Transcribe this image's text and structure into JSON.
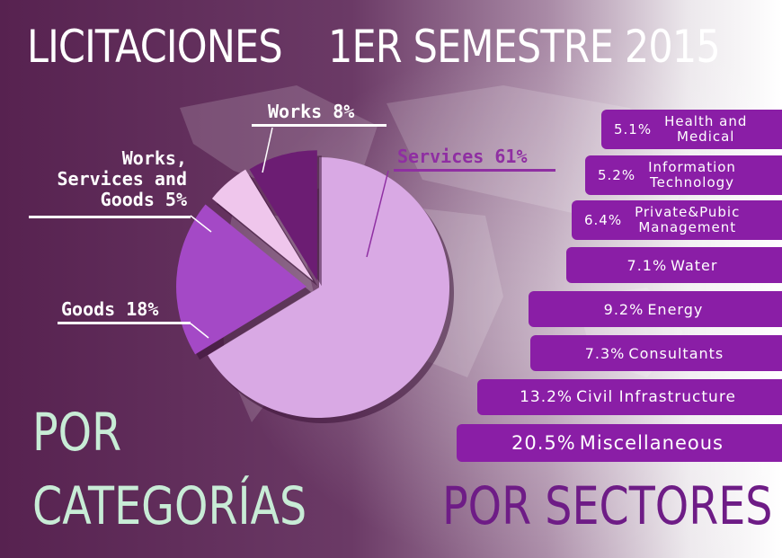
{
  "title": {
    "main": "LICITACIONES",
    "sub": "1ER SEMESTRE 2015"
  },
  "colors": {
    "bg_dark": "#5a2452",
    "bar": "#8a1ea6",
    "accent_services": "#8f2fa2",
    "mint": "#c8ecd6",
    "sectores_text": "#6e1c86"
  },
  "chart_data": [
    {
      "type": "pie",
      "title": "POR CATEGORÍAS",
      "categories": [
        "Services",
        "Goods",
        "Works, Services and Goods",
        "Works"
      ],
      "values": [
        61,
        18,
        5,
        8
      ],
      "labels": [
        "Services 61%",
        "Goods 18%",
        "Works, Services and Goods 5%",
        "Works 8%"
      ],
      "colors": [
        "#d9a9e4",
        "#a449c6",
        "#efc6ec",
        "#6c1d73"
      ]
    },
    {
      "type": "bar",
      "title": "POR SECTORES",
      "categories": [
        "Health and Medical",
        "Information Technology",
        "Private&Pubic Management",
        "Water",
        "Energy",
        "Consultants",
        "Civil Infrastructure",
        "Miscellaneous"
      ],
      "values": [
        5.1,
        5.2,
        6.4,
        7.1,
        9.2,
        7.3,
        13.2,
        20.5
      ]
    }
  ],
  "labels": {
    "works": "Works 8%",
    "wsg_line1": "Works,",
    "wsg_line2": "Services and",
    "wsg_line3": "Goods 5%",
    "services": "Services 61%",
    "goods": "Goods 18%",
    "por_cat_1": "POR",
    "por_cat_2": "CATEGORÍAS",
    "por_sectores": "POR SECTORES"
  },
  "sectors": [
    {
      "pct": "5.1%",
      "line1": "Health and",
      "line2": "Medical"
    },
    {
      "pct": "5.2%",
      "line1": "Information",
      "line2": "Technology"
    },
    {
      "pct": "6.4%",
      "line1": "Private&Pubic",
      "line2": "Management"
    },
    {
      "pct": "7.1%",
      "line1": "Water"
    },
    {
      "pct": "9.2%",
      "line1": "Energy"
    },
    {
      "pct": "7.3%",
      "line1": "Consultants"
    },
    {
      "pct": "13.2%",
      "line1": "Civil Infrastructure"
    },
    {
      "pct": "20.5%",
      "line1": "Miscellaneous"
    }
  ]
}
